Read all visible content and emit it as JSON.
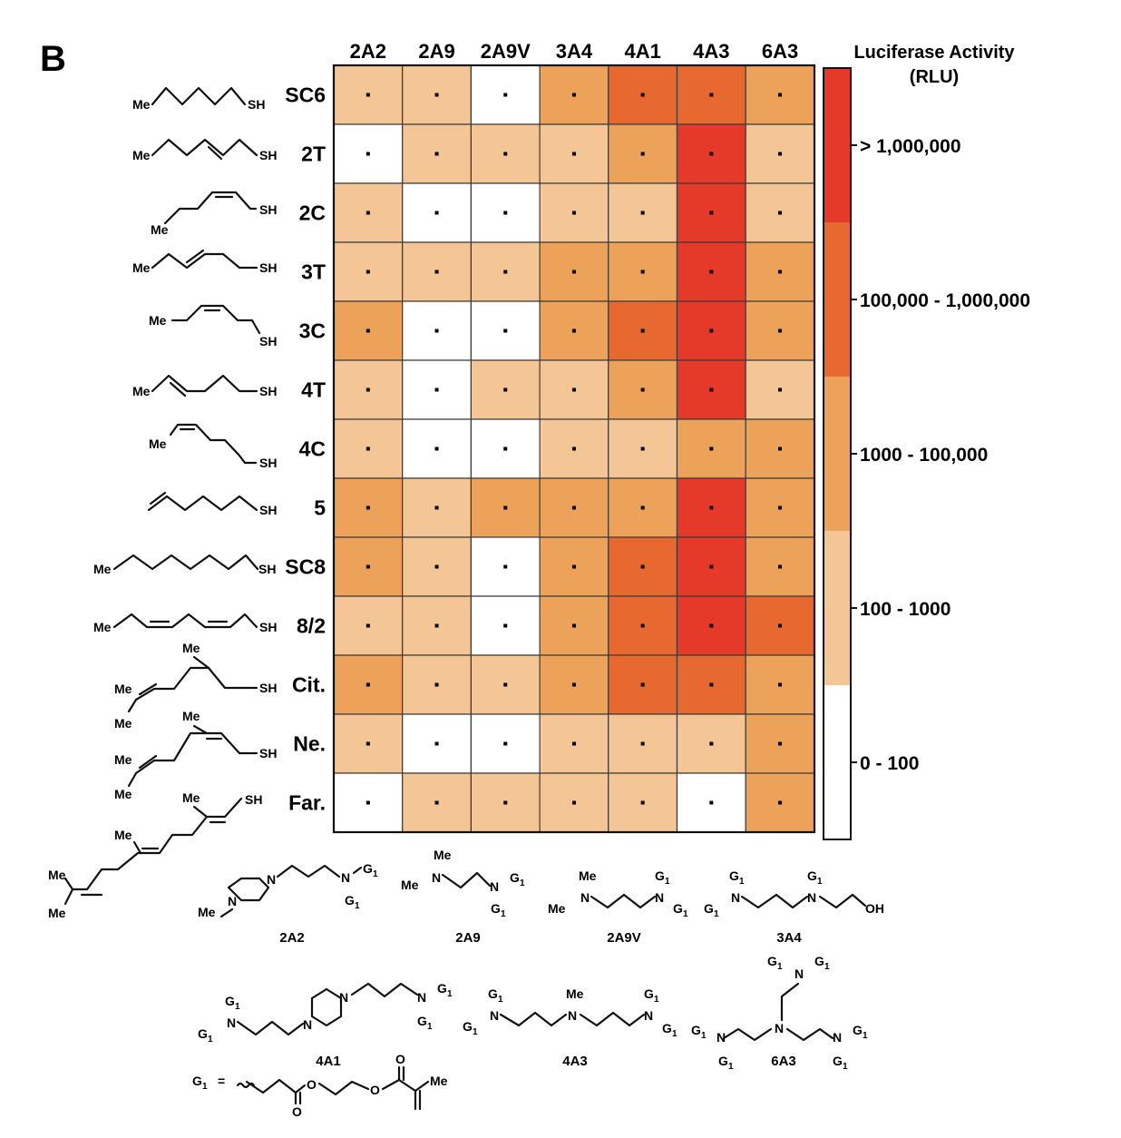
{
  "panel_label": "B",
  "chart_data": {
    "type": "heatmap",
    "columns": [
      "2A2",
      "2A9",
      "2A9V",
      "3A4",
      "4A1",
      "4A3",
      "6A3"
    ],
    "rows": [
      "SC6",
      "2T",
      "2C",
      "3T",
      "3C",
      "4T",
      "4C",
      "5",
      "SC8",
      "8/2",
      "Cit.",
      "Ne.",
      "Far."
    ],
    "levels": [
      [
        2,
        2,
        1,
        3,
        4,
        4,
        3
      ],
      [
        1,
        2,
        2,
        2,
        3,
        5,
        2
      ],
      [
        2,
        1,
        1,
        2,
        2,
        5,
        2
      ],
      [
        2,
        2,
        2,
        3,
        3,
        5,
        3
      ],
      [
        3,
        1,
        1,
        3,
        4,
        5,
        3
      ],
      [
        2,
        1,
        2,
        2,
        3,
        5,
        2
      ],
      [
        2,
        1,
        1,
        2,
        2,
        3,
        3
      ],
      [
        3,
        2,
        3,
        3,
        3,
        5,
        3
      ],
      [
        3,
        2,
        1,
        3,
        4,
        5,
        3
      ],
      [
        2,
        2,
        1,
        3,
        4,
        5,
        4
      ],
      [
        3,
        2,
        2,
        3,
        4,
        4,
        3
      ],
      [
        2,
        1,
        1,
        2,
        2,
        2,
        3
      ],
      [
        1,
        2,
        2,
        2,
        2,
        1,
        3
      ]
    ],
    "legend": {
      "title_line1": "Luciferase Activity",
      "title_line2": "(RLU)",
      "bins": [
        {
          "level": 5,
          "label": "> 1,000,000",
          "color": "#e5392a"
        },
        {
          "level": 4,
          "label": "100,000 - 1,000,000",
          "color": "#e8692f"
        },
        {
          "level": 3,
          "label": "1000 - 100,000",
          "color": "#eda259"
        },
        {
          "level": 2,
          "label": "100 - 1000",
          "color": "#f5c695"
        },
        {
          "level": 1,
          "label": "0 - 100",
          "color": "#ffffff"
        }
      ]
    }
  },
  "molecule_labels": {
    "me": "Me",
    "sh": "SH",
    "n": "N",
    "oh": "OH",
    "o": "O",
    "g": "G",
    "g_sub": "1"
  },
  "amines": [
    "2A2",
    "2A9",
    "2A9V",
    "3A4",
    "4A1",
    "4A3",
    "6A3"
  ],
  "g1_definition": {
    "lhs": "G",
    "sub": "1",
    "eq": "="
  }
}
